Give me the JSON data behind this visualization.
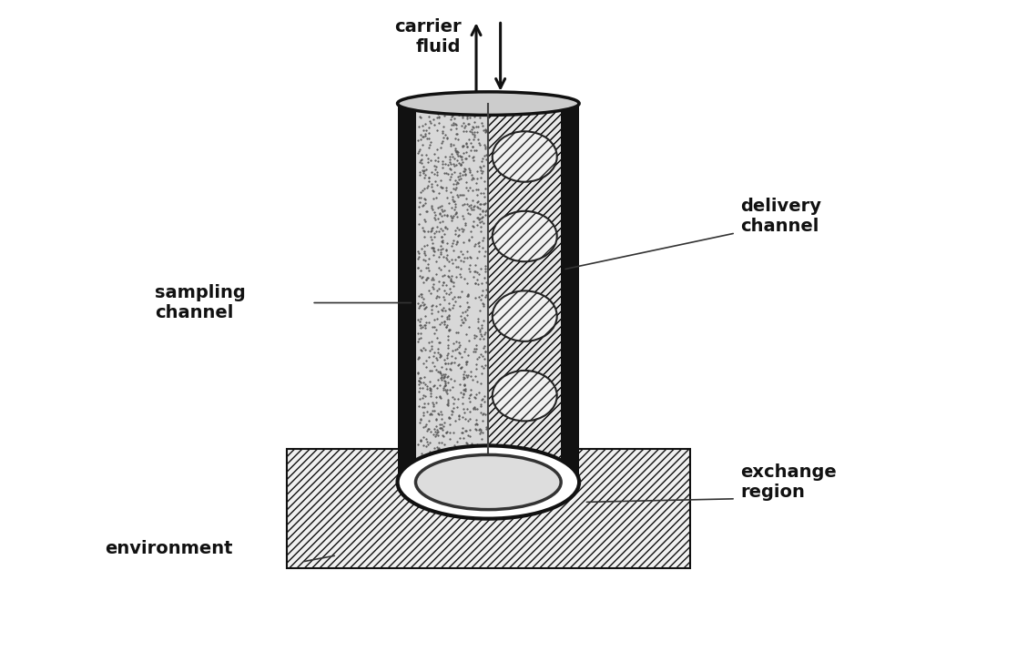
{
  "background_color": "#ffffff",
  "label_carrier_fluid": "carrier\nfluid",
  "label_delivery_channel": "delivery\nchannel",
  "label_sampling_channel": "sampling\nchannel",
  "label_exchange_region": "exchange\nregion",
  "label_environment": "environment",
  "label_fontsize": 14,
  "arrow_color": "#111111",
  "tube_color": "#111111",
  "hatch_color": "#333333"
}
